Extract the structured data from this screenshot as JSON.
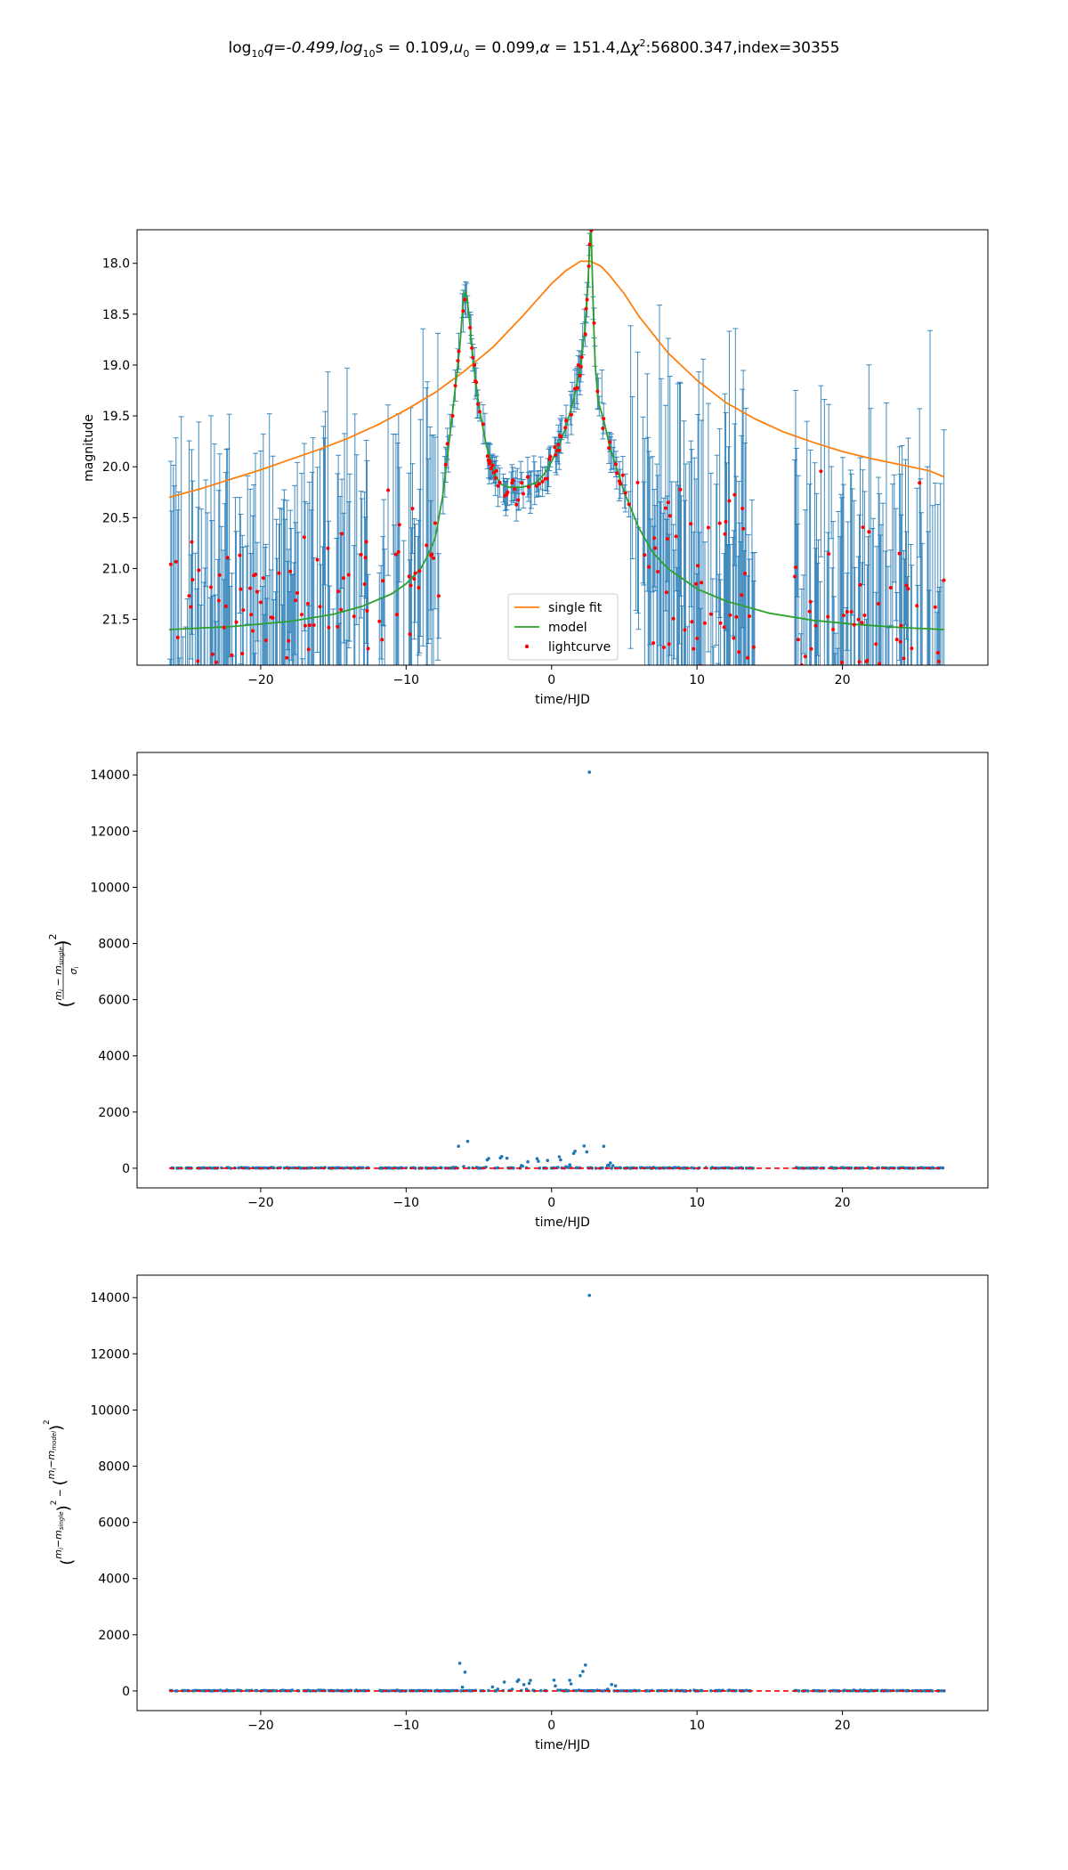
{
  "figure": {
    "title_parts": {
      "p1": "log",
      "p1s": "10",
      "p2": "q=-0.499,log",
      "p2s": "10",
      "p3": "s = 0.109,",
      "p4": "u",
      "p4s": "0",
      "p5": " = 0.099,",
      "p6": "α",
      "p7": " = 151.4,Δ",
      "p8": "χ",
      "p8s": "2",
      "p9": ":56800.347,index=30355"
    }
  },
  "colors": {
    "errorbar": "#1f77b4",
    "points": "#ff0000",
    "single_fit": "#ff7f0e",
    "model": "#2ca02c",
    "residual": "#1f77b4",
    "zero_line": "#ff0000"
  },
  "chart_data": [
    {
      "type": "line",
      "id": "lightcurve-panel",
      "xlabel": "time/HJD",
      "ylabel": "magnitude",
      "xlim": [
        -28.5,
        30
      ],
      "ylim": [
        21.95,
        17.67
      ],
      "y_inverted": true,
      "x_ticks": [
        -20,
        -10,
        0,
        10,
        20
      ],
      "x_tick_labels": [
        "−20",
        "−10",
        "0",
        "10",
        "20"
      ],
      "y_ticks": [
        18.0,
        18.5,
        19.0,
        19.5,
        20.0,
        20.5,
        21.0,
        21.5
      ],
      "y_tick_labels": [
        "18.0",
        "18.5",
        "19.0",
        "19.5",
        "20.0",
        "20.5",
        "21.0",
        "21.5"
      ],
      "legend": {
        "placement": "lower-center",
        "entries": [
          "single fit",
          "model",
          "lightcurve"
        ]
      },
      "series": [
        {
          "name": "single fit",
          "kind": "line",
          "x": [
            -26.3,
            -24,
            -22,
            -20,
            -18,
            -16,
            -14,
            -12,
            -10,
            -8,
            -6,
            -4,
            -2,
            -1,
            0,
            1,
            2,
            2.7,
            3.4,
            4,
            5,
            6,
            8,
            10,
            12,
            14,
            16,
            18,
            20,
            22,
            24,
            26,
            27
          ],
          "y": [
            20.3,
            20.21,
            20.12,
            20.03,
            19.93,
            19.83,
            19.72,
            19.59,
            19.44,
            19.27,
            19.06,
            18.82,
            18.52,
            18.36,
            18.2,
            18.07,
            17.98,
            17.98,
            18.03,
            18.12,
            18.3,
            18.52,
            18.88,
            19.15,
            19.37,
            19.53,
            19.66,
            19.76,
            19.85,
            19.92,
            19.98,
            20.04,
            20.1
          ]
        },
        {
          "name": "model",
          "kind": "line",
          "x": [
            -26.3,
            -22,
            -18,
            -15,
            -13,
            -11,
            -10,
            -9,
            -8.5,
            -8,
            -7.5,
            -7,
            -6.6,
            -6.3,
            -6.1,
            -5.95,
            -5.8,
            -5.6,
            -5.4,
            -5.0,
            -4.5,
            -4.0,
            -3.5,
            -3.0,
            -2.5,
            -2.0,
            -1.5,
            -1.0,
            -0.5,
            0,
            0.5,
            1.0,
            1.5,
            2.0,
            2.3,
            2.5,
            2.7,
            2.9,
            3.0,
            3.2,
            3.6,
            4,
            5,
            6,
            7,
            8,
            10,
            12,
            15,
            18,
            21,
            24,
            27
          ],
          "y": [
            21.6,
            21.57,
            21.52,
            21.45,
            21.37,
            21.25,
            21.15,
            21.0,
            20.87,
            20.7,
            20.3,
            19.7,
            19.2,
            18.8,
            18.42,
            18.27,
            18.35,
            18.62,
            18.95,
            19.4,
            19.78,
            20.05,
            20.17,
            20.2,
            20.2,
            20.2,
            20.18,
            20.15,
            20.07,
            19.95,
            19.8,
            19.6,
            19.35,
            19.0,
            18.65,
            18.2,
            17.6,
            18.6,
            19.0,
            19.35,
            19.55,
            19.8,
            20.25,
            20.6,
            20.85,
            21.0,
            21.2,
            21.32,
            21.44,
            21.51,
            21.55,
            21.58,
            21.6
          ]
        },
        {
          "name": "lightcurve",
          "kind": "scatter-errorbar",
          "x_range": [
            -26.3,
            27
          ],
          "gaps": [
            [
              -12.6,
              -11.9
            ],
            [
              14,
              16.7
            ]
          ]
        }
      ]
    },
    {
      "type": "scatter",
      "id": "residual-panel",
      "xlabel": "time/HJD",
      "ylabel_parts": {
        "num_a": "m",
        "num_a_sub": "i",
        "num_sep": " − ",
        "num_b": "m",
        "num_b_sub": "single",
        "den": "σ",
        "den_sub": "i",
        "exp": "2"
      },
      "xlim": [
        -28.5,
        30
      ],
      "ylim": [
        -700,
        14800
      ],
      "x_ticks": [
        -20,
        -10,
        0,
        10,
        20
      ],
      "x_tick_labels": [
        "−20",
        "−10",
        "0",
        "10",
        "20"
      ],
      "y_ticks": [
        0,
        2000,
        4000,
        6000,
        8000,
        10000,
        12000,
        14000
      ],
      "y_tick_labels": [
        "0",
        "2000",
        "4000",
        "6000",
        "8000",
        "10000",
        "12000",
        "14000"
      ],
      "outlier": {
        "x": 2.6,
        "y": 14100
      },
      "reference_line": {
        "y": 0,
        "style": "dashed"
      }
    },
    {
      "type": "scatter",
      "id": "delta-chi2-panel",
      "xlabel": "time/HJD",
      "ylabel_parts": {
        "a_num_a": "m",
        "a_num_a_sub": "i",
        "a_num_b": "m",
        "a_num_b_sub": "single",
        "b_num_a": "m",
        "b_num_a_sub": "i",
        "b_num_b": "m",
        "b_num_b_sub": "model",
        "den": "σ",
        "den_sub": "i",
        "exp": "2",
        "minus": " − "
      },
      "xlim": [
        -28.5,
        30
      ],
      "ylim": [
        -700,
        14800
      ],
      "x_ticks": [
        -20,
        -10,
        0,
        10,
        20
      ],
      "x_tick_labels": [
        "−20",
        "−10",
        "0",
        "10",
        "20"
      ],
      "y_ticks": [
        0,
        2000,
        4000,
        6000,
        8000,
        10000,
        12000,
        14000
      ],
      "y_tick_labels": [
        "0",
        "2000",
        "4000",
        "6000",
        "8000",
        "10000",
        "12000",
        "14000"
      ],
      "outlier": {
        "x": 2.6,
        "y": 14080
      },
      "reference_line": {
        "y": 0,
        "style": "dashed"
      }
    }
  ]
}
